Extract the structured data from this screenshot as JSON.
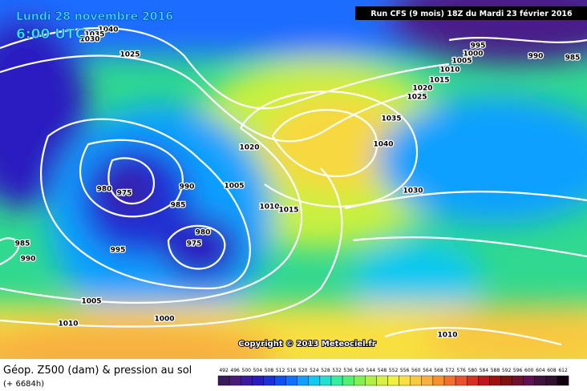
{
  "header": {
    "date": "Lundi 28 novembre 2016",
    "time": "6:00 UTC",
    "run": "Run CFS (9 mois) 18Z du Mardi 23 février 2016"
  },
  "isobar_labels": [
    "1040",
    "1035",
    "1030",
    "1025",
    "995",
    "1000",
    "1005",
    "990",
    "985",
    "1010",
    "1015",
    "1020",
    "1025",
    "1035",
    "1040",
    "1020",
    "1030",
    "1005",
    "990",
    "980",
    "975",
    "985",
    "1010",
    "1015",
    "980",
    "975",
    "985",
    "990",
    "995",
    "1005",
    "1000",
    "1010",
    "1010"
  ],
  "copyright": "Copyright © 2013 Meteociel.fr",
  "footer": {
    "title": "Géop. Z500 (dam) & pression au sol",
    "lead": "(+ 6684h)"
  },
  "scale": {
    "labels": [
      "492",
      "496",
      "500",
      "504",
      "508",
      "512",
      "516",
      "520",
      "524",
      "528",
      "532",
      "536",
      "540",
      "544",
      "548",
      "552",
      "556",
      "560",
      "564",
      "568",
      "572",
      "576",
      "580",
      "584",
      "588",
      "592",
      "596",
      "600",
      "604",
      "608",
      "612"
    ],
    "colors": [
      "#3a1a5a",
      "#4a1a7a",
      "#3a1aa0",
      "#2a1ac0",
      "#1a30d8",
      "#1050f0",
      "#1070ff",
      "#10a0ff",
      "#10c8f0",
      "#20e0d0",
      "#30f0a0",
      "#50f070",
      "#80f050",
      "#b0f040",
      "#d8f040",
      "#f0f040",
      "#f8e040",
      "#f8c840",
      "#f8b040",
      "#f89030",
      "#f07030",
      "#e85030",
      "#d83020",
      "#c01818",
      "#a01010",
      "#801010",
      "#701030",
      "#601050",
      "#401040",
      "#301030",
      "#100010"
    ]
  }
}
